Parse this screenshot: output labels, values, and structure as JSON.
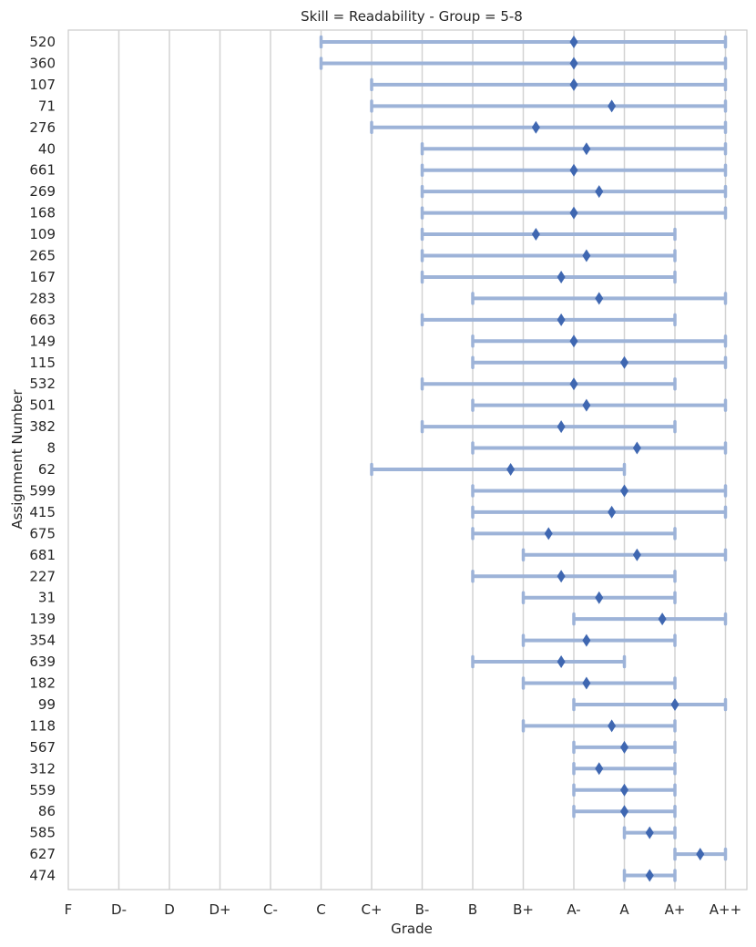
{
  "chart_data": {
    "type": "range-dot",
    "title": "Skill = Readability - Group = 5-8",
    "xlabel": "Grade",
    "ylabel": "Assignment Number",
    "grades": [
      "F",
      "D-",
      "D",
      "D+",
      "C-",
      "C",
      "C+",
      "B-",
      "B",
      "B+",
      "A-",
      "A",
      "A+",
      "A++"
    ],
    "xlim": [
      0,
      13
    ],
    "grid": "vertical",
    "colors": {
      "range": "#9db3d8",
      "marker": "#3f67b1",
      "grid": "#d3d3d3"
    },
    "assignments": [
      {
        "id": "520",
        "min": 5,
        "max": 13,
        "mean": 10.0
      },
      {
        "id": "360",
        "min": 5,
        "max": 13,
        "mean": 10.0
      },
      {
        "id": "107",
        "min": 6,
        "max": 13,
        "mean": 10.0
      },
      {
        "id": "71",
        "min": 6,
        "max": 13,
        "mean": 10.75
      },
      {
        "id": "276",
        "min": 6,
        "max": 13,
        "mean": 9.25
      },
      {
        "id": "40",
        "min": 7,
        "max": 13,
        "mean": 10.25
      },
      {
        "id": "661",
        "min": 7,
        "max": 13,
        "mean": 10.0
      },
      {
        "id": "269",
        "min": 7,
        "max": 13,
        "mean": 10.5
      },
      {
        "id": "168",
        "min": 7,
        "max": 13,
        "mean": 10.0
      },
      {
        "id": "109",
        "min": 7,
        "max": 12,
        "mean": 9.25
      },
      {
        "id": "265",
        "min": 7,
        "max": 12,
        "mean": 10.25
      },
      {
        "id": "167",
        "min": 7,
        "max": 12,
        "mean": 9.75
      },
      {
        "id": "283",
        "min": 8,
        "max": 13,
        "mean": 10.5
      },
      {
        "id": "663",
        "min": 7,
        "max": 12,
        "mean": 9.75
      },
      {
        "id": "149",
        "min": 8,
        "max": 13,
        "mean": 10.0
      },
      {
        "id": "115",
        "min": 8,
        "max": 13,
        "mean": 11.0
      },
      {
        "id": "532",
        "min": 7,
        "max": 12,
        "mean": 10.0
      },
      {
        "id": "501",
        "min": 8,
        "max": 13,
        "mean": 10.25
      },
      {
        "id": "382",
        "min": 7,
        "max": 12,
        "mean": 9.75
      },
      {
        "id": "8",
        "min": 8,
        "max": 13,
        "mean": 11.25
      },
      {
        "id": "62",
        "min": 6,
        "max": 11,
        "mean": 8.75
      },
      {
        "id": "599",
        "min": 8,
        "max": 13,
        "mean": 11.0
      },
      {
        "id": "415",
        "min": 8,
        "max": 13,
        "mean": 10.75
      },
      {
        "id": "675",
        "min": 8,
        "max": 12,
        "mean": 9.5
      },
      {
        "id": "681",
        "min": 9,
        "max": 13,
        "mean": 11.25
      },
      {
        "id": "227",
        "min": 8,
        "max": 12,
        "mean": 9.75
      },
      {
        "id": "31",
        "min": 9,
        "max": 12,
        "mean": 10.5
      },
      {
        "id": "139",
        "min": 10,
        "max": 13,
        "mean": 11.75
      },
      {
        "id": "354",
        "min": 9,
        "max": 12,
        "mean": 10.25
      },
      {
        "id": "639",
        "min": 8,
        "max": 11,
        "mean": 9.75
      },
      {
        "id": "182",
        "min": 9,
        "max": 12,
        "mean": 10.25
      },
      {
        "id": "99",
        "min": 10,
        "max": 13,
        "mean": 12.0
      },
      {
        "id": "118",
        "min": 9,
        "max": 12,
        "mean": 10.75
      },
      {
        "id": "567",
        "min": 10,
        "max": 12,
        "mean": 11.0
      },
      {
        "id": "312",
        "min": 10,
        "max": 12,
        "mean": 10.5
      },
      {
        "id": "559",
        "min": 10,
        "max": 12,
        "mean": 11.0
      },
      {
        "id": "86",
        "min": 10,
        "max": 12,
        "mean": 11.0
      },
      {
        "id": "585",
        "min": 11,
        "max": 12,
        "mean": 11.5
      },
      {
        "id": "627",
        "min": 12,
        "max": 13,
        "mean": 12.5
      },
      {
        "id": "474",
        "min": 11,
        "max": 12,
        "mean": 11.5
      }
    ]
  }
}
